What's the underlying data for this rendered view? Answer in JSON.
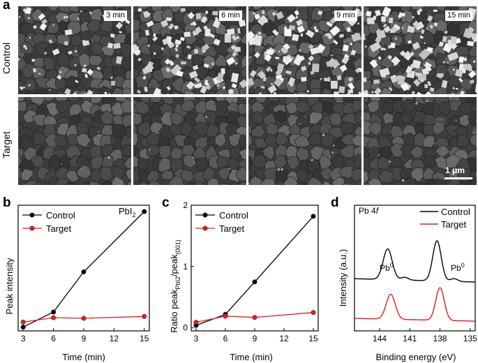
{
  "panels": {
    "a": "a",
    "b": "b",
    "c": "c",
    "d": "d"
  },
  "sem": {
    "rows": [
      "Control",
      "Target"
    ],
    "times": [
      "3 min",
      "6 min",
      "9 min",
      "15 min"
    ],
    "scale_bar": "1 μm"
  },
  "chart_data": [
    {
      "type": "line",
      "panel": "b",
      "annotation": "PbI",
      "annotation_sub": "2",
      "xlabel": "Time (min)",
      "ylabel": "Peak intensity",
      "x": [
        3,
        6,
        9,
        15
      ],
      "xticks": [
        "3",
        "6",
        "9",
        "12",
        "15"
      ],
      "xlim": [
        2.5,
        15.5
      ],
      "ylim": [
        0,
        1.0
      ],
      "legend_position": "top-left",
      "series": [
        {
          "name": "Control",
          "color": "#000000",
          "values": [
            0.03,
            0.15,
            0.47,
            0.95
          ]
        },
        {
          "name": "Target",
          "color": "#e41a1c",
          "values": [
            0.07,
            0.105,
            0.1,
            0.115
          ]
        }
      ]
    },
    {
      "type": "line",
      "panel": "c",
      "xlabel": "Time (min)",
      "ylabel_main": "Ratio peak",
      "ylabel_sub1": "PbI2",
      "ylabel_mid": "/peak",
      "ylabel_sub2": "(001)",
      "x": [
        3,
        6,
        9,
        15
      ],
      "xticks": [
        "3",
        "6",
        "9",
        "12",
        "15"
      ],
      "yticks": [
        "0",
        "1",
        "2"
      ],
      "xlim": [
        2.5,
        15.5
      ],
      "ylim": [
        -0.05,
        2.0
      ],
      "legend_position": "top-left",
      "series": [
        {
          "name": "Control",
          "color": "#000000",
          "values": [
            0.04,
            0.22,
            0.75,
            1.82
          ]
        },
        {
          "name": "Target",
          "color": "#e41a1c",
          "values": [
            0.09,
            0.19,
            0.17,
            0.25
          ]
        }
      ]
    },
    {
      "type": "line",
      "panel": "d",
      "annotation": "Pb 4",
      "annotation_italic": "f",
      "peak_label": "Pb",
      "peak_sup": "0",
      "xlabel": "Binding energy (eV)",
      "ylabel": "Intensity (a.u.)",
      "xticks": [
        "144",
        "141",
        "138",
        "135"
      ],
      "xlim": [
        146.5,
        134.5
      ],
      "legend_position": "top-right",
      "series": [
        {
          "name": "Control",
          "color": "#000000"
        },
        {
          "name": "Target",
          "color": "#e41a1c"
        }
      ]
    }
  ]
}
